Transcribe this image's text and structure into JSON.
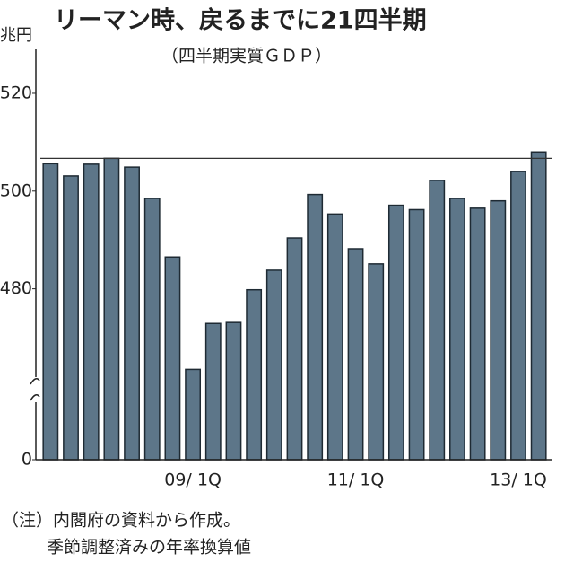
{
  "chart_data": {
    "type": "bar",
    "title": "リーマン時、戻るまでに21四半期",
    "subtitle": "（四半期実質ＧＤＰ）",
    "y_label": "兆円",
    "note": [
      "（注）内閣府の資料から作成。",
      "季節調整済みの年率換算値"
    ],
    "categories": [
      null,
      null,
      null,
      null,
      null,
      null,
      null,
      "09/ 1Q",
      null,
      null,
      null,
      null,
      null,
      null,
      null,
      "11/ 1Q",
      null,
      null,
      null,
      null,
      null,
      null,
      null,
      "13/ 1Q",
      null
    ],
    "values": [
      505.6,
      503.1,
      505.5,
      506.7,
      504.9,
      498.5,
      486.5,
      463.5,
      472.9,
      473.1,
      479.8,
      483.8,
      490.4,
      499.3,
      495.3,
      488.2,
      485.1,
      497.1,
      496.2,
      502.2,
      498.5,
      496.5,
      498.0,
      504.0,
      508.0
    ],
    "color": "#5d7689",
    "reference_line": 506.7,
    "ylim": [
      0,
      529
    ],
    "axis_break": [
      0,
      461
    ],
    "yticks": [
      0,
      480,
      500,
      520
    ]
  }
}
